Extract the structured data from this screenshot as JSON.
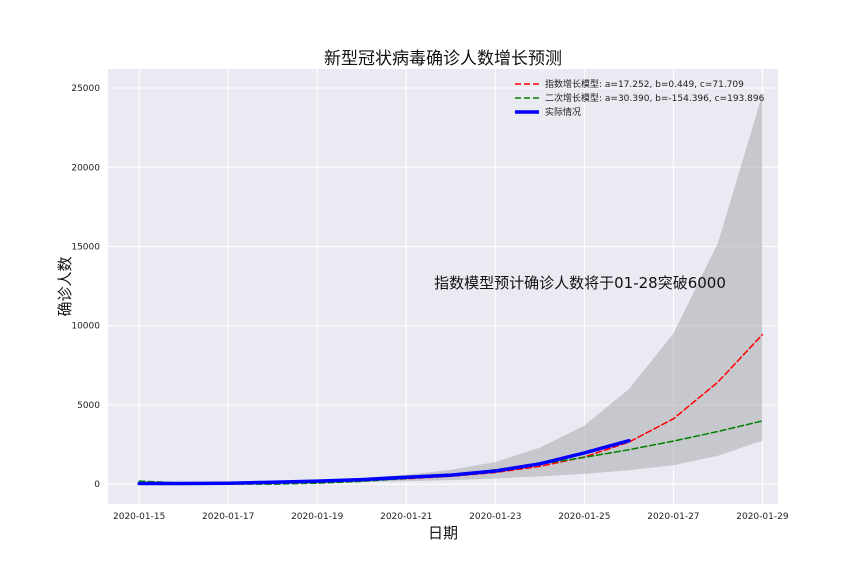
{
  "chart_data": {
    "type": "line",
    "title": "新型冠状病毒确诊人数增长预测",
    "xlabel": "日期",
    "ylabel": "确诊人数",
    "x": [
      "2020-01-15",
      "2020-01-16",
      "2020-01-17",
      "2020-01-18",
      "2020-01-19",
      "2020-01-20",
      "2020-01-21",
      "2020-01-22",
      "2020-01-23",
      "2020-01-24",
      "2020-01-25",
      "2020-01-26",
      "2020-01-27",
      "2020-01-28",
      "2020-01-29"
    ],
    "x_tick_labels": [
      "2020-01-15",
      "2020-01-17",
      "2020-01-19",
      "2020-01-21",
      "2020-01-23",
      "2020-01-25",
      "2020-01-27",
      "2020-01-29"
    ],
    "ylim": [
      -1250,
      26200
    ],
    "y_ticks": [
      0,
      5000,
      10000,
      15000,
      20000,
      25000
    ],
    "y_tick_labels": [
      "0",
      "5000",
      "10000",
      "15000",
      "20000",
      "25000"
    ],
    "grid": true,
    "legend_position": "top-right",
    "series": [
      {
        "name": "指数增长模型: a=17.252, b=0.449, c=71.709",
        "color": "#ff0000",
        "style": "dashed",
        "values": [
          89,
          99,
          115,
          141,
          181,
          244,
          342,
          497,
          739,
          1120,
          1717,
          2655,
          4129,
          6441,
          9440
        ]
      },
      {
        "name": "二次增长模型: a=30.390, b=-154.396, c=193.896",
        "color": "#008000",
        "style": "dashed",
        "values": [
          194,
          70,
          7,
          5,
          63,
          182,
          362,
          603,
          905,
          1267,
          1690,
          2174,
          2719,
          3325,
          3991
        ]
      },
      {
        "name": "实际情况",
        "color": "#0000ff",
        "style": "solid",
        "values": [
          41,
          45,
          62,
          121,
          198,
          291,
          440,
          571,
          830,
          1287,
          1975,
          2744,
          null,
          null,
          null
        ]
      }
    ],
    "confidence_band": {
      "color": "#a9a9b0",
      "lower": [
        35,
        40,
        50,
        65,
        90,
        130,
        185,
        260,
        360,
        490,
        650,
        880,
        1200,
        1800,
        2750
      ],
      "upper": [
        110,
        125,
        145,
        180,
        260,
        390,
        600,
        900,
        1400,
        2300,
        3700,
        6000,
        9500,
        15200,
        24600
      ]
    },
    "annotation": "指数模型预计确诊人数将于01-28突破6000"
  }
}
